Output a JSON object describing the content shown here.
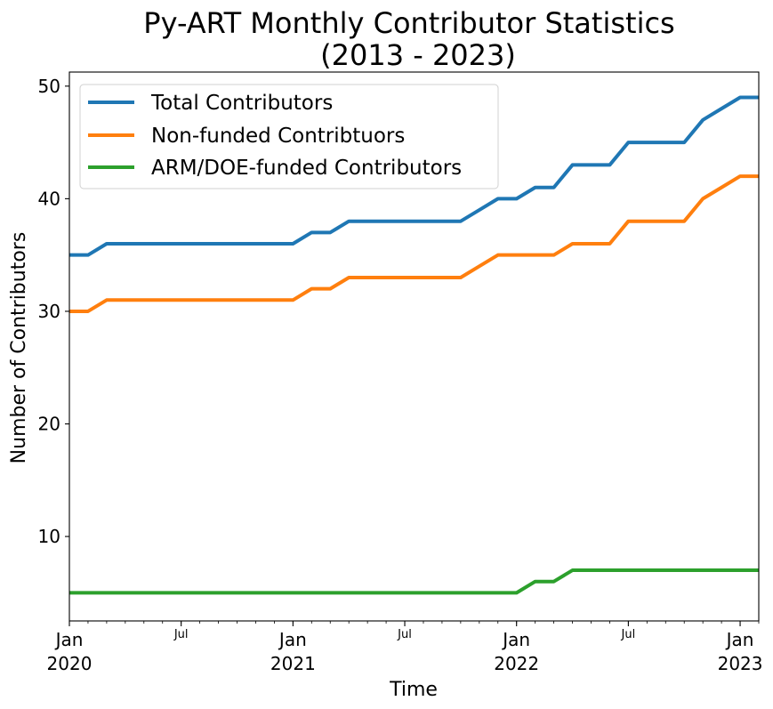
{
  "chart_data": {
    "type": "line",
    "title_line1": "Py-ART Monthly Contributor Statistics",
    "title_line2": "(2013 - 2023)",
    "xlabel": "Time",
    "ylabel": "Number of Contributors",
    "ylim": [
      2.5,
      51.25
    ],
    "yticks": [
      10,
      20,
      30,
      40,
      50
    ],
    "xlim": [
      "2020-01",
      "2023-02"
    ],
    "x_major_ticks": [
      {
        "date": "2020-01",
        "line1": "Jan",
        "line2": "2020"
      },
      {
        "date": "2020-07",
        "line1": "Jul",
        "line2": ""
      },
      {
        "date": "2021-01",
        "line1": "Jan",
        "line2": "2021"
      },
      {
        "date": "2021-07",
        "line1": "Jul",
        "line2": ""
      },
      {
        "date": "2022-01",
        "line1": "Jan",
        "line2": "2022"
      },
      {
        "date": "2022-07",
        "line1": "Jul",
        "line2": ""
      },
      {
        "date": "2023-01",
        "line1": "Jan",
        "line2": "2023"
      }
    ],
    "x": [
      "2020-01",
      "2020-02",
      "2020-03",
      "2020-04",
      "2020-05",
      "2020-06",
      "2020-07",
      "2020-08",
      "2020-09",
      "2020-10",
      "2020-11",
      "2020-12",
      "2021-01",
      "2021-02",
      "2021-03",
      "2021-04",
      "2021-05",
      "2021-06",
      "2021-07",
      "2021-08",
      "2021-09",
      "2021-10",
      "2021-11",
      "2021-12",
      "2022-01",
      "2022-02",
      "2022-03",
      "2022-04",
      "2022-05",
      "2022-06",
      "2022-07",
      "2022-08",
      "2022-09",
      "2022-10",
      "2022-11",
      "2022-12",
      "2023-01",
      "2023-02"
    ],
    "series": [
      {
        "name": "Total Contributors",
        "color": "#1f77b4",
        "values": [
          35,
          35,
          36,
          36,
          36,
          36,
          36,
          36,
          36,
          36,
          36,
          36,
          36,
          37,
          37,
          38,
          38,
          38,
          38,
          38,
          38,
          38,
          39,
          40,
          40,
          41,
          41,
          43,
          43,
          43,
          45,
          45,
          45,
          45,
          47,
          48,
          49,
          49
        ]
      },
      {
        "name": "Non-funded Contribtuors",
        "color": "#ff7f0e",
        "values": [
          30,
          30,
          31,
          31,
          31,
          31,
          31,
          31,
          31,
          31,
          31,
          31,
          31,
          32,
          32,
          33,
          33,
          33,
          33,
          33,
          33,
          33,
          34,
          35,
          35,
          35,
          35,
          36,
          36,
          36,
          38,
          38,
          38,
          38,
          40,
          41,
          42,
          42
        ]
      },
      {
        "name": "ARM/DOE-funded Contributors",
        "color": "#2ca02c",
        "values": [
          5,
          5,
          5,
          5,
          5,
          5,
          5,
          5,
          5,
          5,
          5,
          5,
          5,
          5,
          5,
          5,
          5,
          5,
          5,
          5,
          5,
          5,
          5,
          5,
          5,
          6,
          6,
          7,
          7,
          7,
          7,
          7,
          7,
          7,
          7,
          7,
          7,
          7
        ]
      }
    ],
    "grid": false,
    "legend_position": "top-left"
  }
}
